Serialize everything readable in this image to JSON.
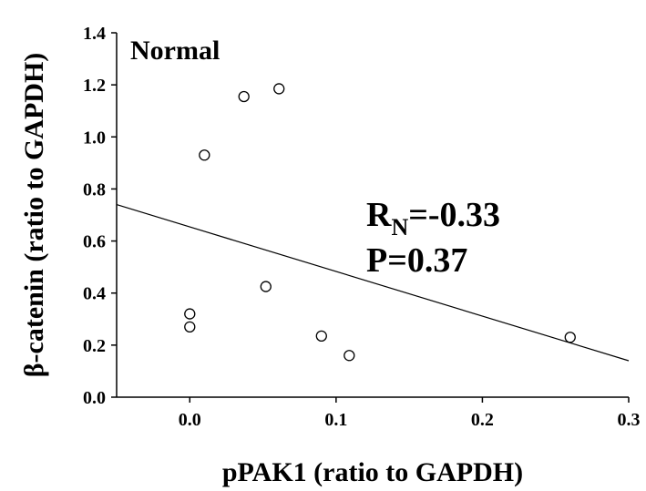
{
  "chart_data": {
    "type": "scatter",
    "title": "",
    "xlabel": "pPAK1 (ratio to GAPDH)",
    "ylabel": "β-catenin (ratio to GAPDH)",
    "xlim": [
      -0.05,
      0.3
    ],
    "ylim": [
      0,
      1.4
    ],
    "xticks": [
      0.0,
      0.1,
      0.2,
      0.3
    ],
    "xtick_labels": [
      "0.0",
      "0.1",
      "0.2",
      "0.3"
    ],
    "yticks": [
      0.0,
      0.2,
      0.4,
      0.6,
      0.8,
      1.0,
      1.2,
      1.4
    ],
    "ytick_labels": [
      "0.0",
      "0.2",
      "0.4",
      "0.6",
      "0.8",
      "1.0",
      "1.2",
      "1.4"
    ],
    "grid": false,
    "points": [
      {
        "x": 0.0,
        "y": 0.32
      },
      {
        "x": 0.0,
        "y": 0.27
      },
      {
        "x": 0.01,
        "y": 0.93
      },
      {
        "x": 0.037,
        "y": 1.155
      },
      {
        "x": 0.061,
        "y": 1.185
      },
      {
        "x": 0.052,
        "y": 0.425
      },
      {
        "x": 0.09,
        "y": 0.235
      },
      {
        "x": 0.109,
        "y": 0.16
      },
      {
        "x": 0.26,
        "y": 0.23
      }
    ],
    "regression_line": {
      "x": [
        -0.05,
        0.3
      ],
      "y": [
        0.74,
        0.14
      ]
    },
    "annotations": {
      "panel": "Normal",
      "r_prefix": "R",
      "r_subscript": "N",
      "r_value": "=-0.33",
      "p_text": "P=0.37"
    }
  }
}
